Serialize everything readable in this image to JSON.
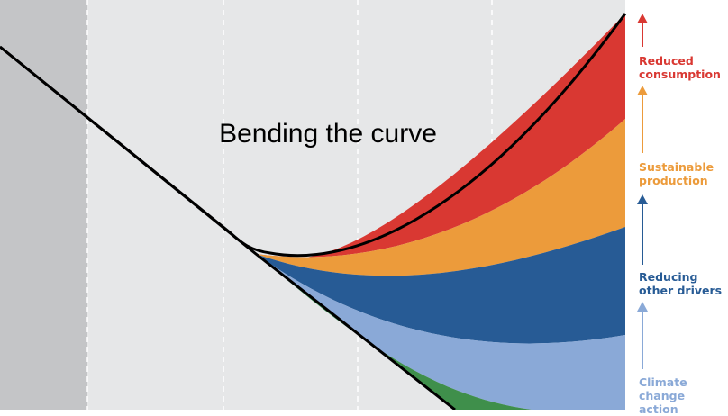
{
  "chart_data": {
    "type": "area",
    "title": "Bending the curve",
    "xlabel": "",
    "ylabel": "",
    "grid": true,
    "colors": {
      "baseline": "#000000",
      "reduced_consumption": "#d93832",
      "sustainable_production": "#ec9b3b",
      "reducing_other_drivers": "#275b95",
      "climate_change_action": "#8aa9d7",
      "extra": "#3f8f4b",
      "panel_dark": "#c4c5c7",
      "panel_light": "#e6e7e8"
    },
    "legend": [
      {
        "key": "reduced_consumption",
        "label": "Reduced\nconsumption",
        "color": "#d93832"
      },
      {
        "key": "sustainable_production",
        "label": "Sustainable\nproduction",
        "color": "#ec9b3b"
      },
      {
        "key": "reducing_other_drivers",
        "label": "Reducing\nother drivers",
        "color": "#275b95"
      },
      {
        "key": "climate_change_action",
        "label": "Climate change\naction",
        "color": "#8aa9d7"
      }
    ]
  }
}
